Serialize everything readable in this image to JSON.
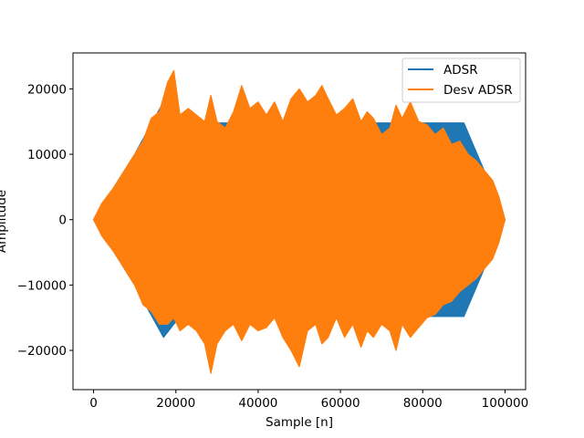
{
  "chart_data": {
    "type": "area",
    "title": "",
    "xlabel": "Sample [n]",
    "ylabel": "Amplitude",
    "xlim": [
      -5000,
      105000
    ],
    "ylim": [
      -26000,
      25500
    ],
    "xticks": [
      0,
      20000,
      40000,
      60000,
      80000,
      100000
    ],
    "xtick_labels": [
      "0",
      "20000",
      "40000",
      "60000",
      "80000",
      "100000"
    ],
    "yticks": [
      -20000,
      -10000,
      0,
      10000,
      20000
    ],
    "ytick_labels": [
      "−20000",
      "−10000",
      "0",
      "10000",
      "20000"
    ],
    "grid": false,
    "legend_position": "top-right",
    "series": [
      {
        "name": "ADSR",
        "color": "#1f77b4",
        "style": "envelope",
        "x": [
          0,
          10000,
          17000,
          21000,
          90000,
          100000
        ],
        "upper": [
          0,
          10000,
          18000,
          14800,
          14800,
          0
        ],
        "lower": [
          0,
          -10000,
          -18000,
          -14800,
          -14800,
          0
        ]
      },
      {
        "name": "Desv ADSR",
        "color": "#ff7f0e",
        "style": "envelope",
        "x": [
          0,
          2000,
          5000,
          8000,
          10000,
          12000,
          14000,
          16000,
          18000,
          19500,
          21000,
          23000,
          25000,
          27000,
          28500,
          30000,
          32000,
          34000,
          36000,
          38000,
          40000,
          42000,
          44000,
          46000,
          48000,
          50000,
          52000,
          54000,
          55500,
          57000,
          59000,
          61000,
          63000,
          65000,
          66500,
          68000,
          70000,
          72000,
          73500,
          75000,
          77000,
          79000,
          81000,
          83000,
          85000,
          87000,
          89000,
          91000,
          93000,
          95000,
          97000,
          98500,
          100000
        ],
        "upper": [
          0,
          2500,
          5000,
          8000,
          10000,
          12000,
          15500,
          16500,
          21000,
          22800,
          16000,
          17000,
          16000,
          15000,
          19000,
          15000,
          14000,
          16500,
          20500,
          17000,
          18000,
          16000,
          18000,
          15000,
          18500,
          20000,
          18000,
          19000,
          20500,
          18500,
          16000,
          17000,
          18500,
          15000,
          16500,
          15500,
          13000,
          14000,
          17500,
          15500,
          18000,
          15000,
          14500,
          13000,
          14000,
          11500,
          12000,
          10000,
          9000,
          7500,
          6000,
          3500,
          0
        ],
        "lower": [
          0,
          -2500,
          -5000,
          -8000,
          -10000,
          -13000,
          -14000,
          -16000,
          -16000,
          -15000,
          -17000,
          -16000,
          -17000,
          -19000,
          -23500,
          -19000,
          -17000,
          -16000,
          -18500,
          -16000,
          -17000,
          -16500,
          -15000,
          -18000,
          -20000,
          -22500,
          -17000,
          -16000,
          -19000,
          -18000,
          -15000,
          -18000,
          -16000,
          -19500,
          -17000,
          -18000,
          -16000,
          -17000,
          -20000,
          -16000,
          -18000,
          -16500,
          -15000,
          -14500,
          -13000,
          -12500,
          -11000,
          -10000,
          -9000,
          -7500,
          -6000,
          -3500,
          0
        ]
      }
    ]
  }
}
